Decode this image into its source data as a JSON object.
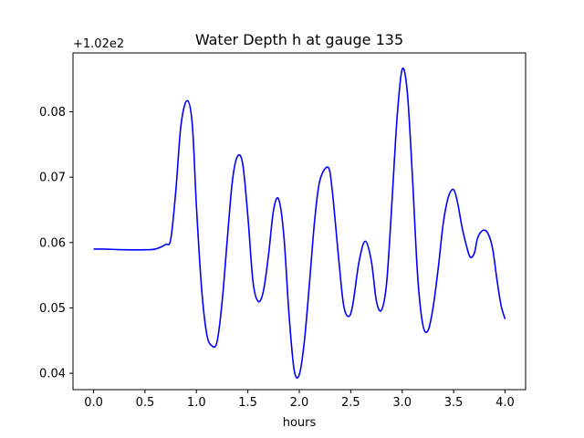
{
  "chart_data": {
    "type": "line",
    "title": "Water Depth h at gauge 135",
    "xlabel": "hours",
    "ylabel": "",
    "y_offset_label": "+1.02e2",
    "xlim": [
      -0.2,
      4.2
    ],
    "ylim": [
      0.0375,
      0.089
    ],
    "x_ticks": [
      0.0,
      0.5,
      1.0,
      1.5,
      2.0,
      2.5,
      3.0,
      3.5,
      4.0
    ],
    "x_tick_labels": [
      "0.0",
      "0.5",
      "1.0",
      "1.5",
      "2.0",
      "2.5",
      "3.0",
      "3.5",
      "4.0"
    ],
    "y_ticks": [
      0.04,
      0.05,
      0.06,
      0.07,
      0.08
    ],
    "y_tick_labels": [
      "0.04",
      "0.05",
      "0.06",
      "0.07",
      "0.08"
    ],
    "grid": false,
    "series": [
      {
        "color": "#0000ff",
        "x": [
          0.0,
          0.1,
          0.3,
          0.5,
          0.6,
          0.7,
          0.75,
          0.8,
          0.85,
          0.91,
          0.96,
          1.0,
          1.05,
          1.1,
          1.15,
          1.2,
          1.25,
          1.3,
          1.35,
          1.4,
          1.45,
          1.5,
          1.55,
          1.6,
          1.65,
          1.7,
          1.75,
          1.8,
          1.85,
          1.9,
          1.95,
          2.0,
          2.05,
          2.1,
          2.15,
          2.2,
          2.28,
          2.32,
          2.38,
          2.43,
          2.48,
          2.52,
          2.58,
          2.64,
          2.7,
          2.75,
          2.8,
          2.85,
          2.9,
          2.95,
          3.0,
          3.05,
          3.1,
          3.15,
          3.2,
          3.25,
          3.3,
          3.35,
          3.4,
          3.45,
          3.5,
          3.54,
          3.58,
          3.62,
          3.66,
          3.7,
          3.73,
          3.76,
          3.8,
          3.84,
          3.88,
          3.92,
          3.96,
          4.0
        ],
        "y": [
          0.059,
          0.059,
          0.0589,
          0.0589,
          0.059,
          0.0597,
          0.0605,
          0.068,
          0.078,
          0.0817,
          0.078,
          0.0655,
          0.053,
          0.046,
          0.0442,
          0.0448,
          0.051,
          0.0605,
          0.0695,
          0.0732,
          0.072,
          0.064,
          0.054,
          0.051,
          0.0525,
          0.058,
          0.065,
          0.0666,
          0.061,
          0.049,
          0.0405,
          0.0398,
          0.045,
          0.054,
          0.0635,
          0.0695,
          0.0715,
          0.068,
          0.058,
          0.0505,
          0.0487,
          0.0505,
          0.057,
          0.0602,
          0.0572,
          0.051,
          0.0497,
          0.054,
          0.066,
          0.079,
          0.0865,
          0.083,
          0.07,
          0.055,
          0.0475,
          0.0465,
          0.05,
          0.056,
          0.063,
          0.067,
          0.0681,
          0.066,
          0.0625,
          0.0598,
          0.0578,
          0.0583,
          0.0605,
          0.0615,
          0.0619,
          0.0612,
          0.059,
          0.0545,
          0.0505,
          0.0483
        ]
      }
    ]
  }
}
